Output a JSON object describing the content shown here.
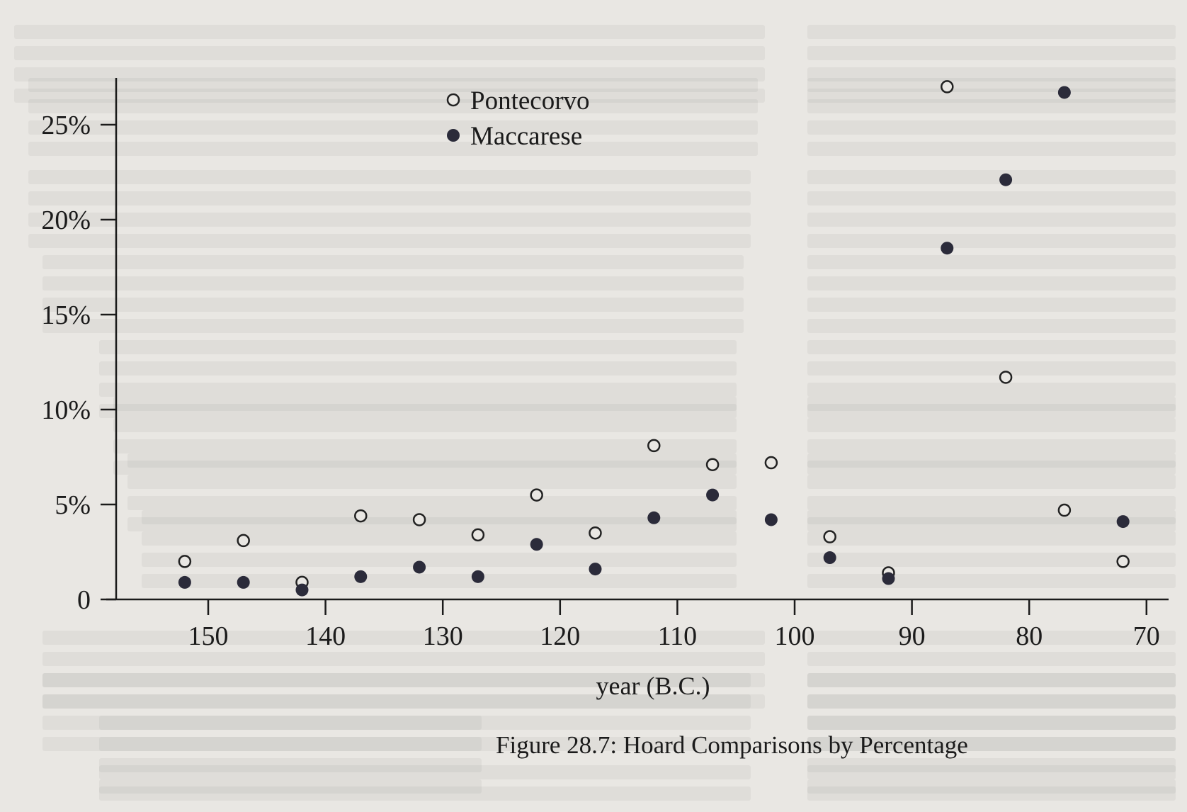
{
  "caption": "Figure 28.7: Hoard Comparisons by Percentage",
  "chart_data": {
    "type": "scatter",
    "title": "",
    "xlabel": "year (B.C.)",
    "ylabel": "",
    "xlim": [
      155,
      68
    ],
    "ylim": [
      0,
      26
    ],
    "x_reversed": true,
    "grid": false,
    "legend_position": "top-center",
    "x_ticks": [
      {
        "value": 150,
        "label": "150"
      },
      {
        "value": 140,
        "label": "140"
      },
      {
        "value": 130,
        "label": "130"
      },
      {
        "value": 120,
        "label": "120"
      },
      {
        "value": 110,
        "label": "110"
      },
      {
        "value": 100,
        "label": "100"
      },
      {
        "value": 90,
        "label": "90"
      },
      {
        "value": 80,
        "label": "80"
      },
      {
        "value": 70,
        "label": "70"
      }
    ],
    "y_ticks": [
      {
        "value": 0,
        "label": "0"
      },
      {
        "value": 5,
        "label": "5%"
      },
      {
        "value": 10,
        "label": "10%"
      },
      {
        "value": 15,
        "label": "15%"
      },
      {
        "value": 20,
        "label": "20%"
      },
      {
        "value": 25,
        "label": "25%"
      }
    ],
    "series": [
      {
        "name": "Pontecorvo",
        "marker": "open-circle",
        "color": "#222222",
        "points": [
          {
            "x": 152,
            "y": 2.0
          },
          {
            "x": 147,
            "y": 3.1
          },
          {
            "x": 142,
            "y": 0.9
          },
          {
            "x": 137,
            "y": 4.4
          },
          {
            "x": 132,
            "y": 4.2
          },
          {
            "x": 127,
            "y": 3.4
          },
          {
            "x": 122,
            "y": 5.5
          },
          {
            "x": 117,
            "y": 3.5
          },
          {
            "x": 112,
            "y": 8.1
          },
          {
            "x": 107,
            "y": 7.1
          },
          {
            "x": 102,
            "y": 7.2
          },
          {
            "x": 97,
            "y": 3.3
          },
          {
            "x": 92,
            "y": 1.4
          },
          {
            "x": 87,
            "y": 27.0
          },
          {
            "x": 82,
            "y": 11.7
          },
          {
            "x": 77,
            "y": 4.7
          },
          {
            "x": 72,
            "y": 2.0
          }
        ]
      },
      {
        "name": "Maccarese",
        "marker": "filled-circle",
        "color": "#2b2b3a",
        "points": [
          {
            "x": 152,
            "y": 0.9
          },
          {
            "x": 147,
            "y": 0.9
          },
          {
            "x": 142,
            "y": 0.5
          },
          {
            "x": 137,
            "y": 1.2
          },
          {
            "x": 132,
            "y": 1.7
          },
          {
            "x": 127,
            "y": 1.2
          },
          {
            "x": 122,
            "y": 2.9
          },
          {
            "x": 117,
            "y": 1.6
          },
          {
            "x": 112,
            "y": 4.3
          },
          {
            "x": 107,
            "y": 5.5
          },
          {
            "x": 102,
            "y": 4.2
          },
          {
            "x": 97,
            "y": 2.2
          },
          {
            "x": 92,
            "y": 1.1
          },
          {
            "x": 87,
            "y": 18.5
          },
          {
            "x": 82,
            "y": 22.1
          },
          {
            "x": 77,
            "y": 26.7
          },
          {
            "x": 72,
            "y": 4.1
          }
        ]
      }
    ]
  }
}
